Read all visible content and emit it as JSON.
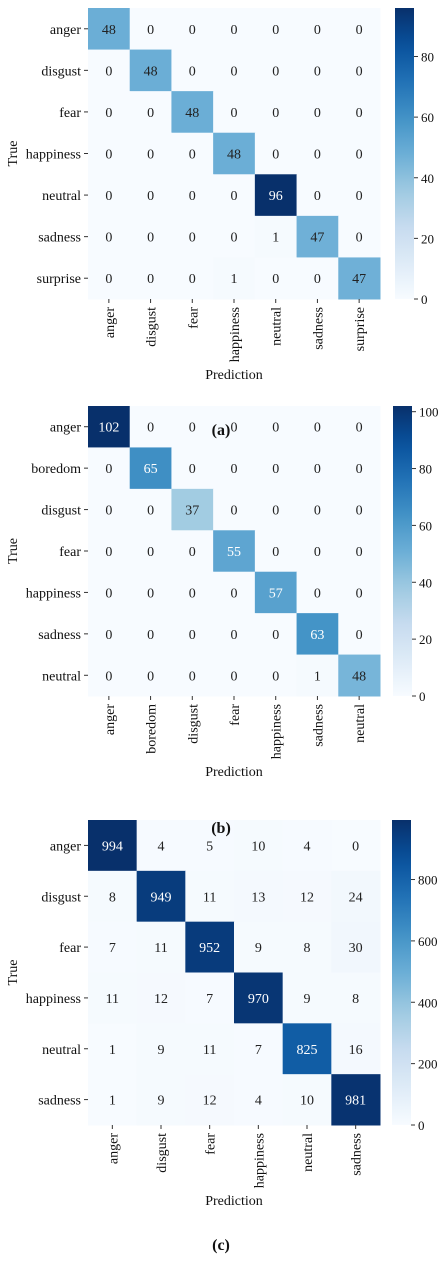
{
  "chart_data": [
    {
      "type": "heatmap",
      "caption": "(a)",
      "xlabel": "Prediction",
      "ylabel": "True",
      "rows": [
        "anger",
        "disgust",
        "fear",
        "happiness",
        "neutral",
        "sadness",
        "surprise"
      ],
      "cols": [
        "anger",
        "disgust",
        "fear",
        "happiness",
        "neutral",
        "sadness",
        "surprise"
      ],
      "values": [
        [
          48,
          0,
          0,
          0,
          0,
          0,
          0
        ],
        [
          0,
          48,
          0,
          0,
          0,
          0,
          0
        ],
        [
          0,
          0,
          48,
          0,
          0,
          0,
          0
        ],
        [
          0,
          0,
          0,
          48,
          0,
          0,
          0
        ],
        [
          0,
          0,
          0,
          0,
          96,
          0,
          0
        ],
        [
          0,
          0,
          0,
          0,
          1,
          47,
          0
        ],
        [
          0,
          0,
          0,
          1,
          0,
          0,
          47
        ]
      ],
      "vmin": 0,
      "vmax": 96,
      "colorbar_ticks": [
        0,
        20,
        40,
        60,
        80
      ],
      "colormap": "Blues"
    },
    {
      "type": "heatmap",
      "caption": "(b)",
      "xlabel": "Prediction",
      "ylabel": "True",
      "rows": [
        "anger",
        "boredom",
        "disgust",
        "fear",
        "happiness",
        "sadness",
        "neutral"
      ],
      "cols": [
        "anger",
        "boredom",
        "disgust",
        "fear",
        "happiness",
        "sadness",
        "neutral"
      ],
      "values": [
        [
          102,
          0,
          0,
          0,
          0,
          0,
          0
        ],
        [
          0,
          65,
          0,
          0,
          0,
          0,
          0
        ],
        [
          0,
          0,
          37,
          0,
          0,
          0,
          0
        ],
        [
          0,
          0,
          0,
          55,
          0,
          0,
          0
        ],
        [
          0,
          0,
          0,
          0,
          57,
          0,
          0
        ],
        [
          0,
          0,
          0,
          0,
          0,
          63,
          0
        ],
        [
          0,
          0,
          0,
          0,
          0,
          1,
          48
        ]
      ],
      "vmin": 0,
      "vmax": 102,
      "colorbar_ticks": [
        0,
        20,
        40,
        60,
        80,
        100
      ],
      "colormap": "Blues"
    },
    {
      "type": "heatmap",
      "caption": "(c)",
      "xlabel": "Prediction",
      "ylabel": "True",
      "rows": [
        "anger",
        "disgust",
        "fear",
        "happiness",
        "neutral",
        "sadness"
      ],
      "cols": [
        "anger",
        "disgust",
        "fear",
        "happiness",
        "neutral",
        "sadness"
      ],
      "values": [
        [
          994,
          4,
          5,
          10,
          4,
          0
        ],
        [
          8,
          949,
          11,
          13,
          12,
          24
        ],
        [
          7,
          11,
          952,
          9,
          8,
          30
        ],
        [
          11,
          12,
          7,
          970,
          9,
          8
        ],
        [
          1,
          9,
          11,
          7,
          825,
          16
        ],
        [
          1,
          9,
          12,
          4,
          10,
          981
        ]
      ],
      "vmin": 0,
      "vmax": 994,
      "colorbar_ticks": [
        0,
        200,
        400,
        600,
        800
      ],
      "colormap": "Blues"
    }
  ]
}
